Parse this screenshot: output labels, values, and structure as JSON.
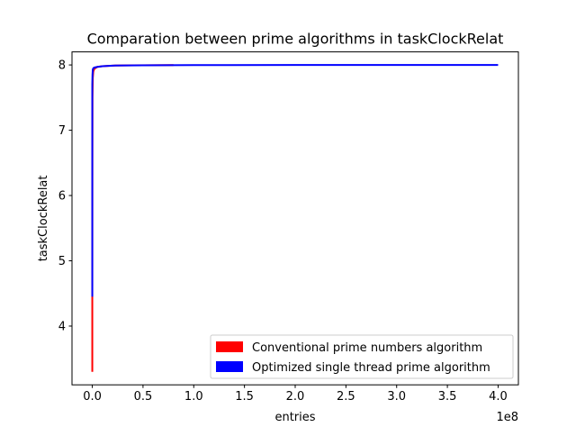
{
  "chart_data": {
    "type": "line",
    "title": "Comparation between prime algorithms in taskClockRelat",
    "xlabel": "entries",
    "ylabel": "taskClockRelat",
    "x_offset_label": "1e8",
    "xlim": [
      -0.2,
      4.2
    ],
    "ylim": [
      3.1,
      8.2
    ],
    "x_ticks": [
      0.0,
      0.5,
      1.0,
      1.5,
      2.0,
      2.5,
      3.0,
      3.5,
      4.0
    ],
    "x_tick_labels": [
      "0.0",
      "0.5",
      "1.0",
      "1.5",
      "2.0",
      "2.5",
      "3.0",
      "3.5",
      "4.0"
    ],
    "y_ticks": [
      4,
      5,
      6,
      7,
      8
    ],
    "y_tick_labels": [
      "4",
      "5",
      "6",
      "7",
      "8"
    ],
    "grid": false,
    "legend_position": "lower-right",
    "series": [
      {
        "name": "Conventional prime numbers algorithm",
        "color": "#ff0000",
        "x": [
          0.0,
          0.0,
          0.001,
          0.002,
          0.005,
          0.01,
          0.02,
          0.05,
          0.1,
          0.2,
          0.4,
          0.8
        ],
        "y": [
          3.3,
          4.45,
          6.5,
          7.5,
          7.8,
          7.9,
          7.94,
          7.97,
          7.98,
          7.99,
          7.995,
          7.998
        ]
      },
      {
        "name": "Optimized single thread prime algorithm",
        "color": "#0000ff",
        "x": [
          0.0,
          0.0,
          0.002,
          0.005,
          0.01,
          0.02,
          0.05,
          0.1,
          0.2,
          0.5,
          1.0,
          2.0,
          3.0,
          4.0
        ],
        "y": [
          4.45,
          7.7,
          7.85,
          7.93,
          7.95,
          7.96,
          7.97,
          7.98,
          7.99,
          7.995,
          7.998,
          7.999,
          7.999,
          8.0
        ]
      }
    ]
  }
}
